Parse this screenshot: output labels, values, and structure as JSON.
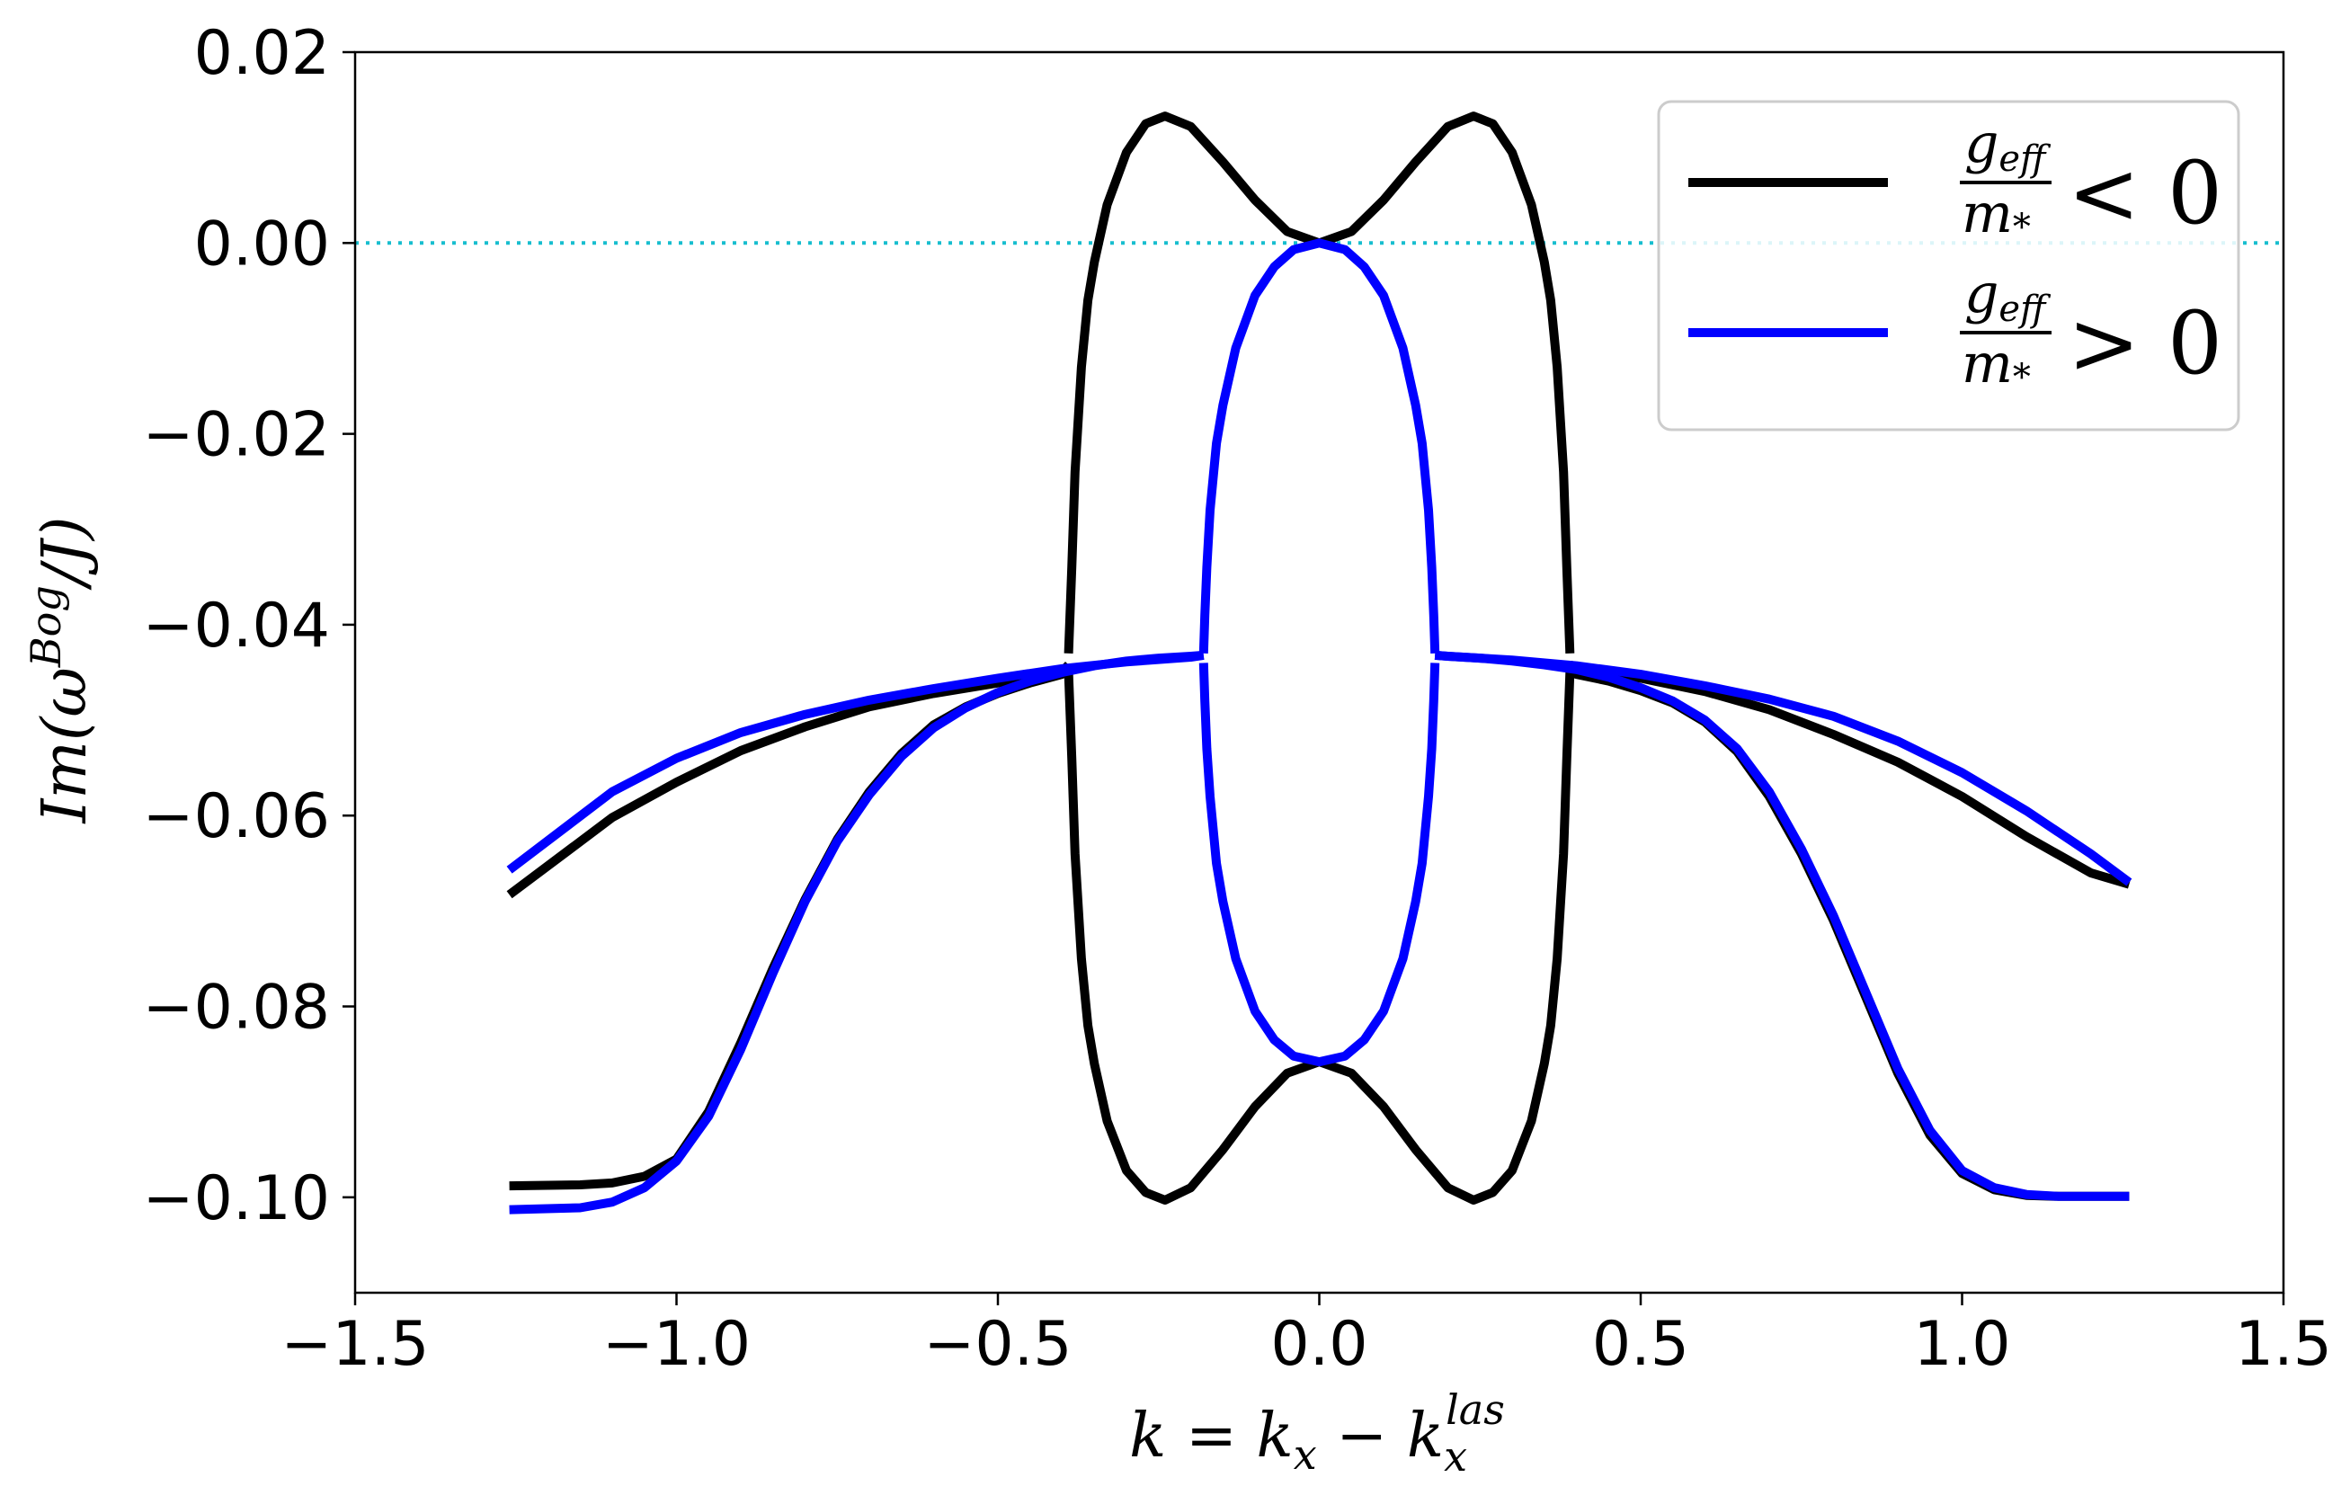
{
  "chart_data": {
    "type": "line",
    "title": "",
    "xlabel": {
      "base": "k = k",
      "sub1": "x",
      "mid": " − k",
      "sub2": "x",
      "sup2": "las"
    },
    "ylabel": {
      "base": "Im(ω",
      "sup": "Bog",
      "tail": "/J)"
    },
    "xlim": [
      -1.5,
      1.5
    ],
    "ylim": [
      -0.11,
      0.02
    ],
    "xticks": [
      -1.5,
      -1.0,
      -0.5,
      0.0,
      0.5,
      1.0,
      1.5
    ],
    "xtick_labels": [
      "−1.5",
      "−1.0",
      "−0.5",
      "0.0",
      "0.5",
      "1.0",
      "1.5"
    ],
    "yticks": [
      0.02,
      0.0,
      -0.02,
      -0.04,
      -0.06,
      -0.08,
      -0.1
    ],
    "ytick_labels": [
      "0.02",
      "0.00",
      "−0.02",
      "−0.04",
      "−0.06",
      "−0.08",
      "−0.10"
    ],
    "grid": false,
    "legend_position": "top-right",
    "reference_line": {
      "y": 0.0,
      "style": "dotted",
      "color": "#17becf"
    },
    "series": [
      {
        "name": {
          "frac_num": "g",
          "num_sub": "eff",
          "frac_den": "m",
          "den_sub": "*",
          "relation": "< 0"
        },
        "color": "#000000",
        "branches": [
          {
            "x": [
              -1.26,
              -1.1,
              -1.0,
              -0.9,
              -0.8,
              -0.7,
              -0.6,
              -0.5,
              -0.45,
              -0.4,
              -0.39
            ],
            "y": [
              -0.0683,
              -0.0602,
              -0.0565,
              -0.0532,
              -0.0507,
              -0.0486,
              -0.0472,
              -0.0461,
              -0.0455,
              -0.0449,
              -0.0442
            ]
          },
          {
            "x": [
              -1.26,
              -1.15,
              -1.1,
              -1.05,
              -1.0,
              -0.95,
              -0.9,
              -0.85,
              -0.8,
              -0.75,
              -0.7,
              -0.65,
              -0.6,
              -0.55,
              -0.5,
              -0.45,
              -0.4,
              -0.39
            ],
            "y": [
              -0.0988,
              -0.0987,
              -0.0985,
              -0.0978,
              -0.096,
              -0.091,
              -0.0838,
              -0.076,
              -0.0688,
              -0.0625,
              -0.0575,
              -0.0535,
              -0.0505,
              -0.0486,
              -0.0472,
              -0.0461,
              -0.0452,
              -0.0442
            ]
          },
          {
            "x": [
              -0.39,
              -0.385,
              -0.38,
              -0.37,
              -0.36,
              -0.35,
              -0.33,
              -0.3,
              -0.27,
              -0.24,
              -0.2,
              -0.15,
              -0.1,
              -0.05,
              0.0,
              0.05,
              0.1,
              0.15,
              0.2,
              0.24,
              0.27,
              0.3,
              0.33,
              0.35,
              0.36,
              0.37,
              0.38,
              0.385,
              0.39
            ],
            "y": [
              -0.043,
              -0.034,
              -0.024,
              -0.013,
              -0.006,
              -0.002,
              0.004,
              0.0095,
              0.0125,
              0.0133,
              0.0122,
              0.0085,
              0.0045,
              0.0012,
              0.0,
              0.0012,
              0.0045,
              0.0085,
              0.0122,
              0.0133,
              0.0125,
              0.0095,
              0.004,
              -0.002,
              -0.006,
              -0.013,
              -0.024,
              -0.034,
              -0.043
            ]
          },
          {
            "x": [
              -0.39,
              -0.385,
              -0.38,
              -0.37,
              -0.36,
              -0.35,
              -0.33,
              -0.3,
              -0.27,
              -0.24,
              -0.2,
              -0.15,
              -0.1,
              -0.05,
              0.0,
              0.05,
              0.1,
              0.15,
              0.2,
              0.24,
              0.27,
              0.3,
              0.33,
              0.35,
              0.36,
              0.37,
              0.38,
              0.385,
              0.39
            ],
            "y": [
              -0.045,
              -0.054,
              -0.064,
              -0.075,
              -0.082,
              -0.086,
              -0.092,
              -0.0972,
              -0.0995,
              -0.1003,
              -0.099,
              -0.095,
              -0.0905,
              -0.087,
              -0.0858,
              -0.087,
              -0.0905,
              -0.095,
              -0.099,
              -0.1003,
              -0.0995,
              -0.0972,
              -0.092,
              -0.086,
              -0.082,
              -0.075,
              -0.064,
              -0.054,
              -0.045
            ]
          },
          {
            "x": [
              0.39,
              0.4,
              0.5,
              0.6,
              0.7,
              0.8,
              0.9,
              1.0,
              1.1,
              1.2,
              1.26
            ],
            "y": [
              -0.0442,
              -0.0445,
              -0.0456,
              -0.047,
              -0.0489,
              -0.0515,
              -0.0544,
              -0.058,
              -0.0622,
              -0.066,
              -0.0672
            ]
          },
          {
            "x": [
              0.39,
              0.4,
              0.45,
              0.5,
              0.55,
              0.6,
              0.65,
              0.7,
              0.75,
              0.8,
              0.85,
              0.9,
              0.95,
              1.0,
              1.05,
              1.1,
              1.15,
              1.2,
              1.26
            ],
            "y": [
              -0.045,
              -0.0452,
              -0.0459,
              -0.0469,
              -0.0482,
              -0.0502,
              -0.0533,
              -0.058,
              -0.064,
              -0.071,
              -0.079,
              -0.087,
              -0.0935,
              -0.0975,
              -0.0992,
              -0.0998,
              -0.0999,
              -0.0999,
              -0.0999
            ]
          }
        ]
      },
      {
        "name": {
          "frac_num": "g",
          "num_sub": "eff",
          "frac_den": "m",
          "den_sub": "*",
          "relation": "> 0"
        },
        "color": "#0000ff",
        "branches": [
          {
            "x": [
              -1.26,
              -1.1,
              -1.0,
              -0.9,
              -0.8,
              -0.7,
              -0.6,
              -0.5,
              -0.4,
              -0.3,
              -0.2,
              -0.18
            ],
            "y": [
              -0.0657,
              -0.0575,
              -0.054,
              -0.0513,
              -0.0494,
              -0.0479,
              -0.0467,
              -0.0456,
              -0.0446,
              -0.0439,
              -0.0434,
              -0.0432
            ]
          },
          {
            "x": [
              -1.26,
              -1.15,
              -1.1,
              -1.05,
              -1.0,
              -0.95,
              -0.9,
              -0.85,
              -0.8,
              -0.75,
              -0.7,
              -0.65,
              -0.6,
              -0.55,
              -0.5,
              -0.45,
              -0.4,
              -0.35,
              -0.3,
              -0.25,
              -0.2,
              -0.18
            ],
            "y": [
              -0.1013,
              -0.1011,
              -0.1005,
              -0.099,
              -0.0962,
              -0.0915,
              -0.0845,
              -0.0765,
              -0.069,
              -0.0627,
              -0.0578,
              -0.0538,
              -0.0508,
              -0.0487,
              -0.0471,
              -0.0459,
              -0.045,
              -0.0443,
              -0.0438,
              -0.0435,
              -0.0433,
              -0.0432
            ]
          },
          {
            "x": [
              -0.18,
              -0.178,
              -0.175,
              -0.17,
              -0.16,
              -0.15,
              -0.13,
              -0.1,
              -0.07,
              -0.04,
              0.0,
              0.04,
              0.07,
              0.1,
              0.13,
              0.15,
              0.16,
              0.17,
              0.175,
              0.178,
              0.18
            ],
            "y": [
              -0.043,
              -0.039,
              -0.034,
              -0.028,
              -0.021,
              -0.017,
              -0.011,
              -0.0055,
              -0.0025,
              -0.0007,
              0.0,
              -0.0007,
              -0.0025,
              -0.0055,
              -0.011,
              -0.017,
              -0.021,
              -0.028,
              -0.034,
              -0.039,
              -0.043
            ]
          },
          {
            "x": [
              -0.18,
              -0.178,
              -0.175,
              -0.17,
              -0.16,
              -0.15,
              -0.13,
              -0.1,
              -0.07,
              -0.04,
              0.0,
              0.04,
              0.07,
              0.1,
              0.13,
              0.15,
              0.16,
              0.17,
              0.175,
              0.178,
              0.18
            ],
            "y": [
              -0.044,
              -0.048,
              -0.053,
              -0.058,
              -0.065,
              -0.069,
              -0.075,
              -0.0805,
              -0.0835,
              -0.0852,
              -0.0858,
              -0.0852,
              -0.0835,
              -0.0805,
              -0.075,
              -0.069,
              -0.065,
              -0.058,
              -0.053,
              -0.048,
              -0.044
            ]
          },
          {
            "x": [
              0.18,
              0.2,
              0.3,
              0.4,
              0.5,
              0.6,
              0.7,
              0.8,
              0.9,
              1.0,
              1.1,
              1.2,
              1.26
            ],
            "y": [
              -0.0432,
              -0.0433,
              -0.0437,
              -0.0443,
              -0.0452,
              -0.0464,
              -0.0478,
              -0.0496,
              -0.0522,
              -0.0555,
              -0.0595,
              -0.064,
              -0.067
            ]
          },
          {
            "x": [
              0.18,
              0.2,
              0.25,
              0.3,
              0.35,
              0.4,
              0.45,
              0.5,
              0.55,
              0.6,
              0.65,
              0.7,
              0.75,
              0.8,
              0.85,
              0.9,
              0.95,
              1.0,
              1.05,
              1.1,
              1.15,
              1.2,
              1.26
            ],
            "y": [
              -0.0432,
              -0.0433,
              -0.0435,
              -0.0438,
              -0.0442,
              -0.0447,
              -0.0455,
              -0.0466,
              -0.048,
              -0.05,
              -0.053,
              -0.0575,
              -0.0635,
              -0.0705,
              -0.0785,
              -0.0865,
              -0.093,
              -0.0972,
              -0.099,
              -0.0997,
              -0.0999,
              -0.0999,
              -0.0999
            ]
          }
        ]
      }
    ]
  }
}
